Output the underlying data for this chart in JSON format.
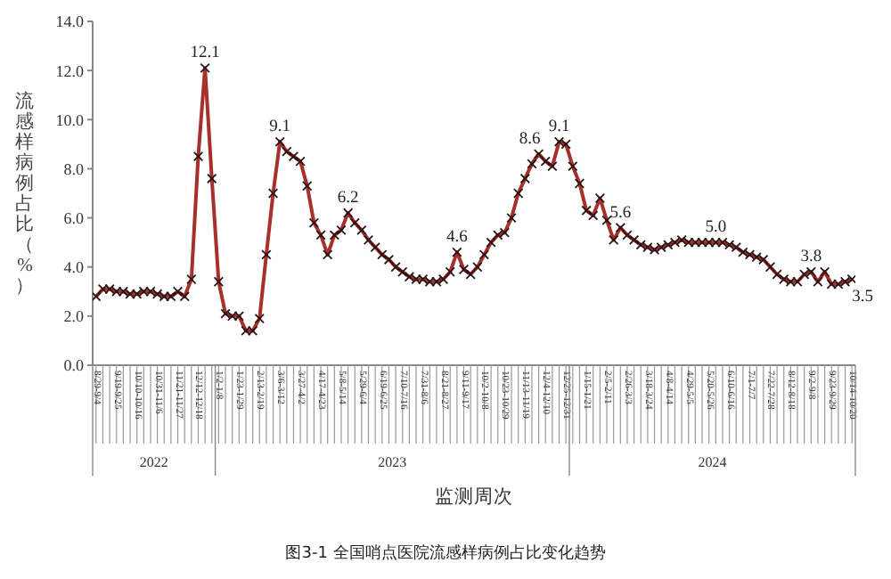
{
  "chart_data": {
    "type": "line",
    "categories": [
      "8/29-9/4",
      null,
      null,
      "9/19-9/25",
      null,
      null,
      "10/10-10/16",
      null,
      null,
      "10/31-11/6",
      null,
      null,
      "11/21-11/27",
      null,
      null,
      "12/12-12/18",
      null,
      null,
      "1/2-1/8",
      null,
      null,
      "1/23-1/29",
      null,
      null,
      "2/13-2/19",
      null,
      null,
      "3/6-3/12",
      null,
      null,
      "3/27-4/2",
      null,
      null,
      "4/17-4/23",
      null,
      null,
      "5/8-5/14",
      null,
      null,
      "5/29-6/4",
      null,
      null,
      "6/19-6/25",
      null,
      null,
      "7/10-7/16",
      null,
      null,
      "7/31-8/6",
      null,
      null,
      "8/21-8/27",
      null,
      null,
      "9/11-9/17",
      null,
      null,
      "10/2-10/8",
      null,
      null,
      "10/23-10/29",
      null,
      null,
      "11/13-11/19",
      null,
      null,
      "12/4-12/10",
      null,
      null,
      "12/25-12/31",
      null,
      null,
      "1/15-1/21",
      null,
      null,
      "2/5-2/11",
      null,
      null,
      "2/26-3/3",
      null,
      null,
      "3/18-3/24",
      null,
      null,
      "4/8-4/14",
      null,
      null,
      "4/29-5/5",
      null,
      null,
      "5/20-5/26",
      null,
      null,
      "6/10-6/16",
      null,
      null,
      "7/1-7/7",
      null,
      null,
      "7/22-7/28",
      null,
      null,
      "8/12-8/18",
      null,
      null,
      "9/2-9/8",
      null,
      null,
      "9/23-9/29",
      null,
      null,
      "10/14-10/20"
    ],
    "series": [
      {
        "color": "#a8302c",
        "values": [
          2.8,
          3.1,
          3.1,
          3.0,
          3.0,
          2.9,
          2.9,
          3.0,
          3.0,
          2.9,
          2.8,
          2.8,
          3.0,
          2.8,
          3.5,
          8.5,
          12.1,
          7.6,
          3.4,
          2.1,
          2.0,
          2.0,
          1.4,
          1.4,
          1.9,
          4.5,
          7.0,
          9.1,
          8.7,
          8.5,
          8.3,
          7.3,
          5.8,
          5.3,
          4.5,
          5.3,
          5.5,
          6.2,
          5.8,
          5.5,
          5.1,
          4.8,
          4.5,
          4.3,
          4.0,
          3.8,
          3.6,
          3.5,
          3.5,
          3.4,
          3.4,
          3.5,
          3.8,
          4.6,
          3.9,
          3.7,
          4.0,
          4.5,
          5.0,
          5.3,
          5.4,
          6.0,
          7.0,
          7.6,
          8.2,
          8.6,
          8.3,
          8.1,
          9.1,
          9.0,
          8.1,
          7.4,
          6.3,
          6.1,
          6.8,
          5.9,
          5.1,
          5.6,
          5.3,
          5.1,
          4.9,
          4.8,
          4.7,
          4.8,
          4.9,
          5.0,
          5.1,
          5.0,
          5.0,
          5.0,
          5.0,
          5.0,
          5.0,
          4.9,
          4.8,
          4.6,
          4.5,
          4.4,
          4.3,
          4.0,
          3.7,
          3.5,
          3.4,
          3.4,
          3.7,
          3.8,
          3.4,
          3.8,
          3.3,
          3.3,
          3.4,
          3.5
        ],
        "value_labels": [
          null,
          null,
          null,
          null,
          null,
          null,
          null,
          null,
          null,
          null,
          null,
          null,
          null,
          null,
          null,
          null,
          "12.1",
          null,
          null,
          null,
          null,
          null,
          null,
          null,
          null,
          null,
          null,
          "9.1",
          null,
          null,
          null,
          null,
          null,
          null,
          null,
          null,
          null,
          "6.2",
          null,
          null,
          null,
          null,
          null,
          null,
          null,
          null,
          null,
          null,
          null,
          null,
          null,
          null,
          null,
          "4.6",
          null,
          null,
          null,
          null,
          null,
          null,
          null,
          null,
          null,
          null,
          null,
          "8.6",
          null,
          null,
          "9.1",
          null,
          null,
          null,
          null,
          null,
          null,
          null,
          null,
          "5.6",
          null,
          null,
          null,
          null,
          null,
          null,
          null,
          null,
          null,
          null,
          null,
          null,
          null,
          "5.0",
          null,
          null,
          null,
          null,
          null,
          null,
          null,
          null,
          null,
          null,
          null,
          null,
          null,
          "3.8",
          null,
          null,
          null,
          null,
          null,
          "3.5"
        ]
      }
    ],
    "ylabel": "流感样病例占比（%）",
    "xlabel": "监测周次",
    "ylim": [
      0,
      14
    ],
    "yticks": [
      {
        "value": 0,
        "label": "0.0"
      },
      {
        "value": 2,
        "label": "2.0"
      },
      {
        "value": 4,
        "label": "4.0"
      },
      {
        "value": 6,
        "label": "6.0"
      },
      {
        "value": 8,
        "label": "8.0"
      },
      {
        "value": 10,
        "label": "10.0"
      },
      {
        "value": 12,
        "label": "12.0"
      },
      {
        "value": 14,
        "label": "14.0"
      }
    ],
    "annotations": [
      "2022",
      "2023",
      "2024",
      "图3-1 全国哨点医院流感样病例占比变化趋势"
    ],
    "marker": "cross",
    "line_style": "solid",
    "grid": false,
    "legend": false
  }
}
